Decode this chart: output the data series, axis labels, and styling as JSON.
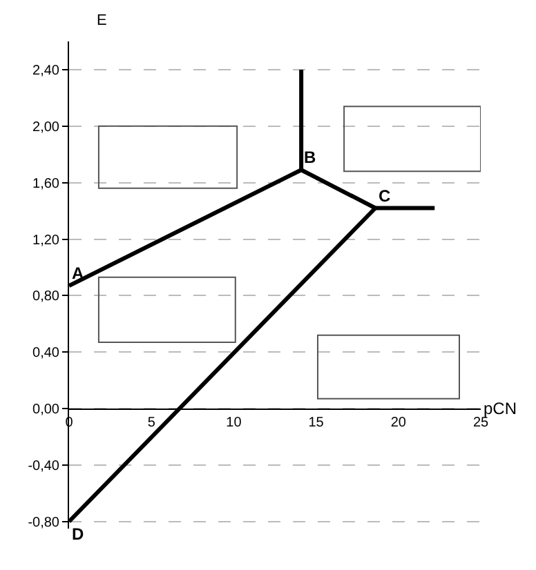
{
  "chart_data": {
    "type": "line",
    "xlabel": "pCN",
    "ylabel": "E",
    "series": [
      {
        "color": "#000000",
        "x": [
          0,
          14.1
        ],
        "values": [
          0.87,
          1.69
        ]
      },
      {
        "color": "#000000",
        "x": [
          14.1,
          14.1
        ],
        "values": [
          1.69,
          2.4
        ]
      },
      {
        "color": "#000000",
        "x": [
          14.1,
          18.6
        ],
        "values": [
          1.69,
          1.42
        ]
      },
      {
        "color": "#000000",
        "x": [
          18.6,
          22.2
        ],
        "values": [
          1.42,
          1.42
        ]
      },
      {
        "color": "#000000",
        "x": [
          0,
          18.6
        ],
        "values": [
          -0.8,
          1.42
        ]
      }
    ],
    "annotations": [
      {
        "text": "A",
        "x": 0,
        "y": 0.87
      },
      {
        "text": "B",
        "x": 14.1,
        "y": 1.69
      },
      {
        "text": "C",
        "x": 18.6,
        "y": 1.42
      },
      {
        "text": "D",
        "x": 0,
        "y": -0.8
      }
    ],
    "xlim": [
      0,
      25
    ],
    "xticks": [
      0,
      5,
      10,
      15,
      20,
      25
    ],
    "ylim": [
      -0.85,
      2.6
    ],
    "yticks": [
      {
        "value": -0.8,
        "label": "-0,80"
      },
      {
        "value": -0.4,
        "label": "-0,40"
      },
      {
        "value": 0,
        "label": "0,00"
      },
      {
        "value": 0.4,
        "label": "0,40"
      },
      {
        "value": 0.8,
        "label": "0,80"
      },
      {
        "value": 1.2,
        "label": "1,20"
      },
      {
        "value": 1.6,
        "label": "1,60"
      },
      {
        "value": 2,
        "label": "2,00"
      },
      {
        "value": 2.4,
        "label": "2,40"
      }
    ],
    "grid": "y",
    "marker": "none",
    "line_style": "solid"
  }
}
